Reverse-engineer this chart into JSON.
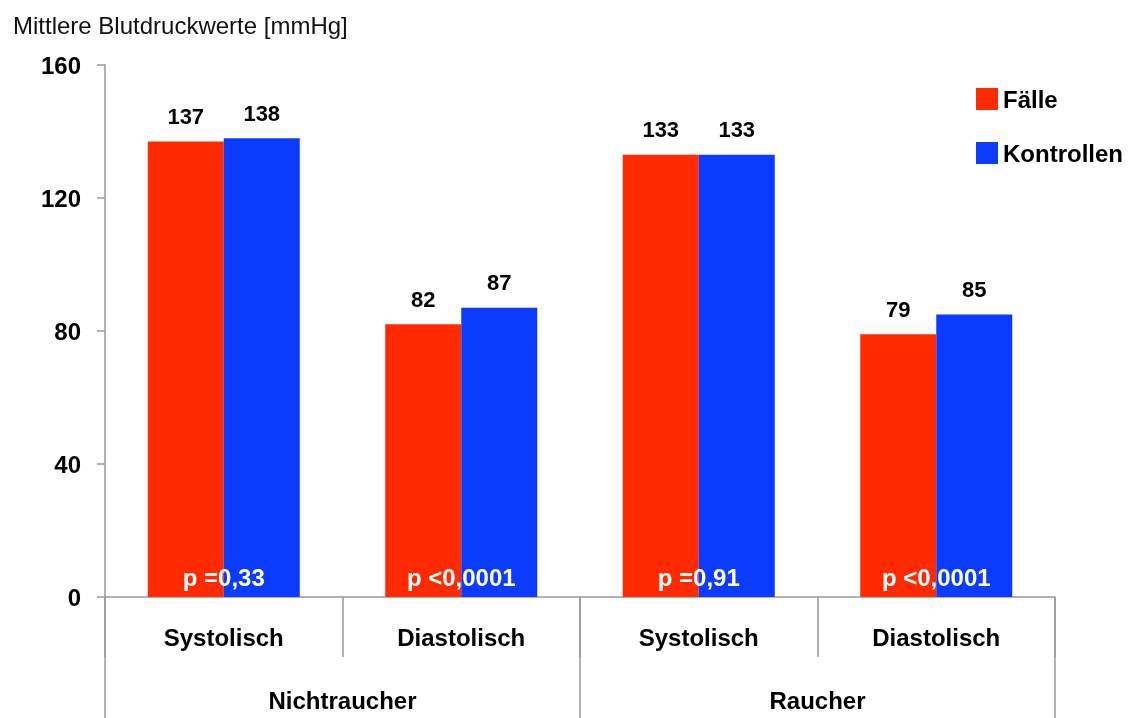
{
  "chart_data": {
    "type": "bar",
    "ylabel": "Mittlere Blutdruckwerte [mmHg]",
    "categories": [
      "Systolisch",
      "Diastolisch",
      "Systolisch",
      "Diastolisch"
    ],
    "series": [
      {
        "name": "Fälle",
        "color": "#ff2a00",
        "values": [
          137,
          82,
          133,
          79
        ]
      },
      {
        "name": "Kontrollen",
        "color": "#0b3bff",
        "values": [
          138,
          87,
          133,
          85
        ]
      }
    ],
    "ylim": [
      0,
      160
    ],
    "yticks": [
      0,
      40,
      80,
      120,
      160
    ],
    "grid": false,
    "legend": "top right",
    "data_labels": true,
    "annotations": [
      "p =0,33",
      "p <0,0001",
      "p =0,91",
      "p <0,0001",
      "Nichtraucher",
      "Raucher"
    ]
  }
}
